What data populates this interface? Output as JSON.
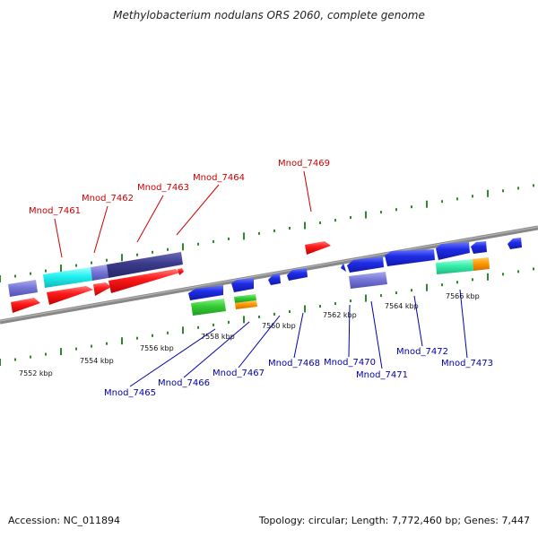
{
  "title": "Methylobacterium nodulans ORS 2060, complete genome",
  "footer": {
    "accession": "Accession: NC_011894",
    "summary": "Topology: circular; Length: 7,772,460 bp; Genes: 7,447"
  },
  "scale_labels": [
    "7552 kbp",
    "7554 kbp",
    "7556 kbp",
    "7558 kbp",
    "7560 kbp",
    "7562 kbp",
    "7564 kbp",
    "7566 kbp"
  ],
  "genes_top": [
    "Mnod_7461",
    "Mnod_7462",
    "Mnod_7463",
    "Mnod_7464",
    "Mnod_7469"
  ],
  "genes_bottom": [
    "Mnod_7465",
    "Mnod_7466",
    "Mnod_7467",
    "Mnod_7468",
    "Mnod_7470",
    "Mnod_7471",
    "Mnod_7472",
    "Mnod_7473"
  ],
  "colors": {
    "forward_label": "#cc0000",
    "reverse_label": "#0000aa",
    "red": "#ff1a1a",
    "blue": "#1f2de6",
    "purple": "#7878d8",
    "navy": "#3a3a8a",
    "cyan": "#20f0f0",
    "green": "#33cc33",
    "mint": "#33eeaa",
    "orange": "#ff9900",
    "tick": "#2a8a2a",
    "axis": "#888888"
  }
}
